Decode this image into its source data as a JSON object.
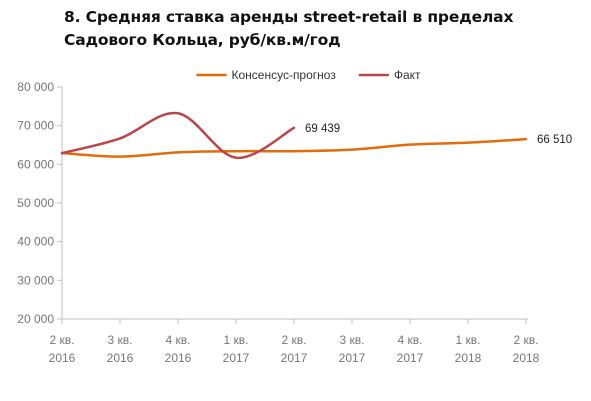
{
  "chart_data": {
    "type": "line",
    "title": "8. Средняя ставка аренды street-retail в пределах Садового Кольца, руб/кв.м/год",
    "xlabel": "",
    "ylabel": "",
    "categories": [
      [
        "2 кв.",
        "2016"
      ],
      [
        "3 кв.",
        "2016"
      ],
      [
        "4 кв.",
        "2016"
      ],
      [
        "1 кв.",
        "2017"
      ],
      [
        "2 кв.",
        "2017"
      ],
      [
        "3 кв.",
        "2017"
      ],
      [
        "4 кв.",
        "2017"
      ],
      [
        "1 кв.",
        "2018"
      ],
      [
        "2 кв.",
        "2018"
      ]
    ],
    "ylim": [
      20000,
      80000
    ],
    "yticks": [
      20000,
      30000,
      40000,
      50000,
      60000,
      70000,
      80000
    ],
    "ytick_labels": [
      "20 000",
      "30 000",
      "40 000",
      "50 000",
      "60 000",
      "70 000",
      "80 000"
    ],
    "grid": false,
    "legend_position": "top",
    "series": [
      {
        "name": "Консенсус-прогноз",
        "color": "#E36C0A",
        "values": [
          62900,
          62000,
          63100,
          63400,
          63400,
          63800,
          65100,
          65600,
          66510
        ],
        "end_label": "66 510"
      },
      {
        "name": "Факт",
        "color": "#B7474A",
        "values": [
          62900,
          66700,
          73200,
          61700,
          69439,
          null,
          null,
          null,
          null
        ],
        "end_label": "69 439"
      }
    ]
  }
}
